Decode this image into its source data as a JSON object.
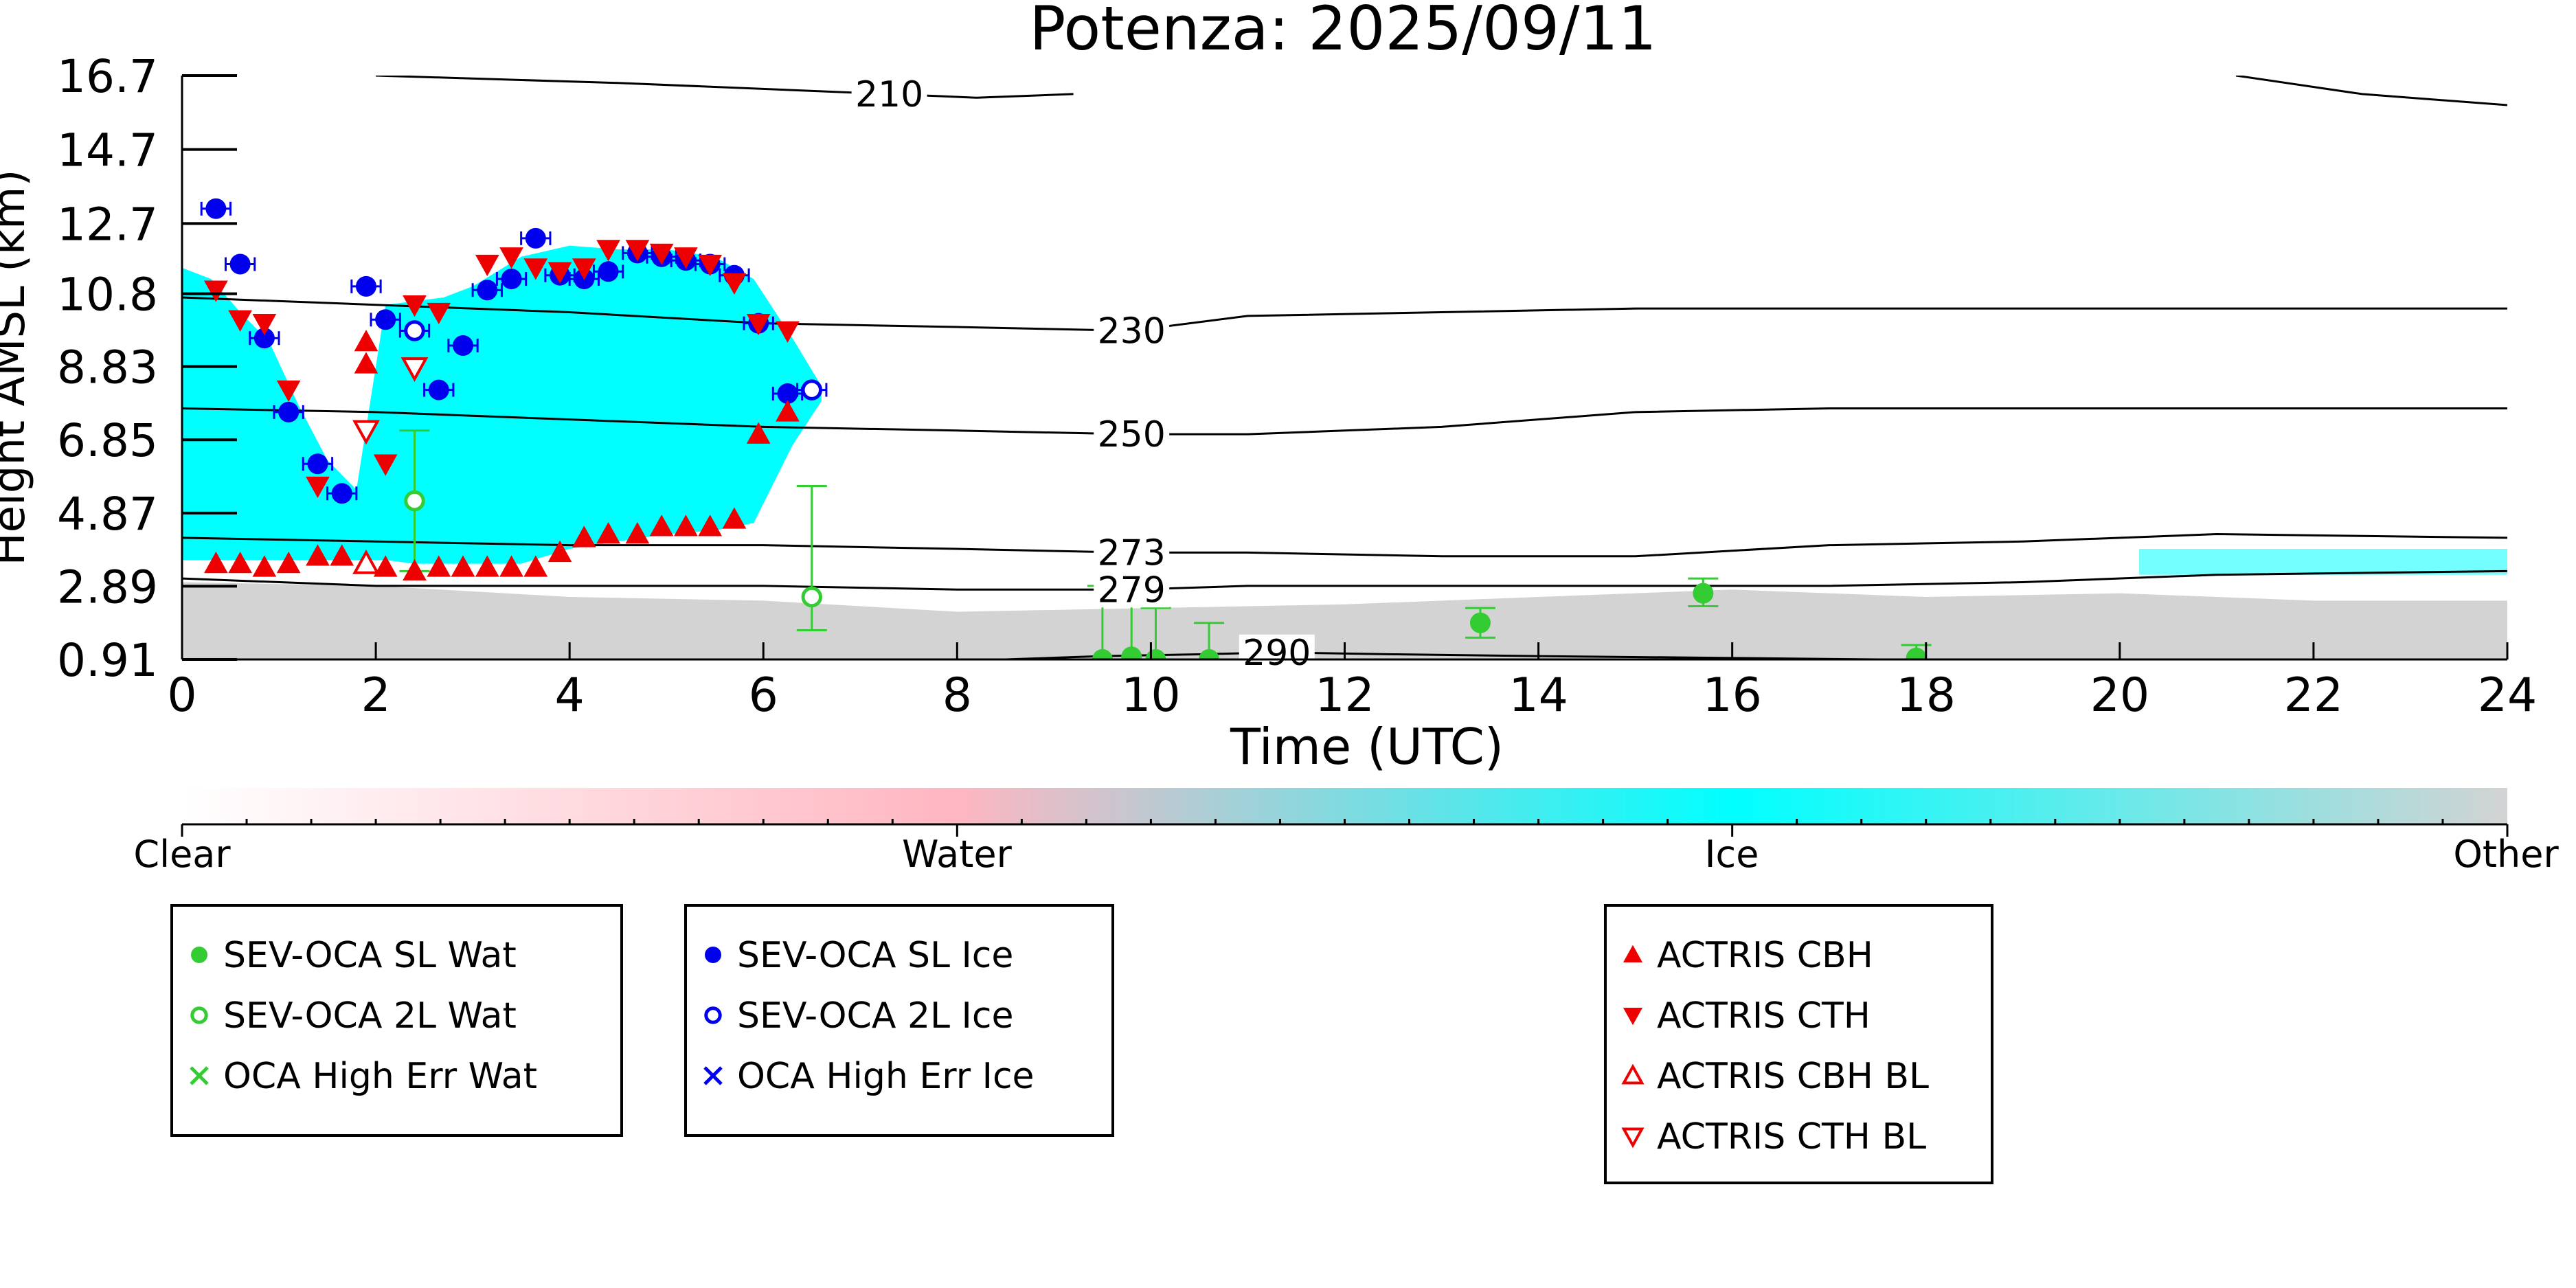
{
  "chart_data": {
    "type": "scatter",
    "title": "Potenza: 2025/09/11",
    "xlabel": "Time (UTC)",
    "ylabel": "Height AMSL (km)",
    "xlim": [
      0,
      24
    ],
    "ylim": [
      0.91,
      16.7
    ],
    "xticks": [
      "0",
      "2",
      "4",
      "6",
      "8",
      "10",
      "12",
      "14",
      "16",
      "18",
      "20",
      "22",
      "24"
    ],
    "yticks": [
      "16.7",
      "14.7",
      "12.7",
      "10.8",
      "8.83",
      "6.85",
      "4.87",
      "2.89",
      "0.91"
    ],
    "grid": false,
    "colorbar": {
      "labels": [
        "Clear",
        "Water",
        "Ice",
        "Other"
      ],
      "colors": [
        "#ffffff",
        "#ffb6c1",
        "#00ffff",
        "#d3d3d3"
      ]
    },
    "background_classes": {
      "ice_color": "#00ffff",
      "other_color": "#d3d3d3",
      "water_color": "#ffb6c1",
      "ice_cloud": {
        "x": [
          0.0,
          0.3,
          0.6,
          0.9,
          1.2,
          1.5,
          1.8,
          2.1,
          2.4,
          2.7,
          3.0,
          3.5,
          4.0,
          4.5,
          5.0,
          5.5,
          5.9,
          6.3,
          6.6
        ],
        "top": [
          11.5,
          11.2,
          10.3,
          9.5,
          7.8,
          6.3,
          5.5,
          10.5,
          10.6,
          10.7,
          11.0,
          11.8,
          12.1,
          12.0,
          12.0,
          11.8,
          11.2,
          9.6,
          8.3
        ],
        "base": [
          3.6,
          3.6,
          3.6,
          3.6,
          3.6,
          3.6,
          3.6,
          3.6,
          3.5,
          3.5,
          3.5,
          3.5,
          3.9,
          4.1,
          4.3,
          4.4,
          4.6,
          6.7,
          7.9
        ]
      },
      "ice_thin_layer": {
        "x": [
          20.2,
          24.0
        ],
        "top": [
          3.9,
          3.9
        ],
        "base": [
          3.2,
          3.2
        ]
      },
      "other_layer": {
        "x": [
          0,
          2,
          4,
          6,
          8,
          10,
          12,
          14,
          16,
          18,
          20,
          22,
          24
        ],
        "top": [
          3.0,
          2.9,
          2.6,
          2.5,
          2.2,
          2.3,
          2.4,
          2.6,
          2.8,
          2.6,
          2.7,
          2.5,
          2.5
        ]
      }
    },
    "contours": [
      {
        "label": "210",
        "label_x": 7.3,
        "x": [
          2.0,
          4.5,
          7.3,
          8.2,
          9.2
        ],
        "y": [
          16.7,
          16.5,
          16.2,
          16.1,
          16.2
        ]
      },
      {
        "label": "",
        "label_x": null,
        "x": [
          21.2,
          22.5,
          24.0
        ],
        "y": [
          16.7,
          16.2,
          15.9
        ]
      },
      {
        "label": "230",
        "label_x": 9.8,
        "x": [
          0,
          2,
          4,
          6,
          8,
          9.8,
          11,
          13,
          15,
          17,
          19,
          21,
          24
        ],
        "y": [
          10.7,
          10.5,
          10.3,
          10.0,
          9.9,
          9.8,
          10.2,
          10.3,
          10.4,
          10.4,
          10.4,
          10.4,
          10.4
        ]
      },
      {
        "label": "250",
        "label_x": 9.8,
        "x": [
          0,
          2,
          4,
          6,
          8,
          9.8,
          11,
          13,
          15,
          17,
          19,
          21,
          24
        ],
        "y": [
          7.7,
          7.6,
          7.4,
          7.2,
          7.1,
          7.0,
          7.0,
          7.2,
          7.6,
          7.7,
          7.7,
          7.7,
          7.7
        ]
      },
      {
        "label": "273",
        "label_x": 9.8,
        "x": [
          0,
          2,
          4,
          6,
          8,
          9.8,
          11,
          13,
          15,
          17,
          19,
          21,
          24
        ],
        "y": [
          4.2,
          4.1,
          4.0,
          4.0,
          3.9,
          3.8,
          3.8,
          3.7,
          3.7,
          4.0,
          4.1,
          4.3,
          4.2
        ]
      },
      {
        "label": "279",
        "label_x": 9.8,
        "x": [
          0,
          2,
          4,
          6,
          8,
          9.8,
          11,
          13,
          15,
          17,
          19,
          21,
          24
        ],
        "y": [
          3.1,
          2.9,
          2.9,
          2.9,
          2.8,
          2.8,
          2.9,
          2.9,
          2.9,
          2.9,
          3.0,
          3.2,
          3.3
        ]
      },
      {
        "label": "290",
        "label_x": 11.3,
        "x": [
          8.5,
          9.5,
          10.5,
          11.3,
          12.5,
          14,
          16,
          17.5
        ],
        "y": [
          0.91,
          1.0,
          1.05,
          1.1,
          1.05,
          1.0,
          0.95,
          0.91
        ]
      }
    ],
    "series": [
      {
        "name": "SEV-OCA SL Wat",
        "marker": "filled-circle",
        "color": "#33cc33",
        "points": [
          {
            "x": 9.5,
            "y": 0.91,
            "err": [
              0.91,
              2.9
            ]
          },
          {
            "x": 9.8,
            "y": 0.98,
            "err": [
              0.91,
              2.9
            ]
          },
          {
            "x": 10.05,
            "y": 0.91,
            "err": [
              0.91,
              2.3
            ]
          },
          {
            "x": 10.6,
            "y": 0.91,
            "err": [
              0.91,
              1.9
            ]
          },
          {
            "x": 13.4,
            "y": 1.9,
            "err": [
              1.5,
              2.3
            ]
          },
          {
            "x": 15.7,
            "y": 2.7,
            "err": [
              2.35,
              3.1
            ]
          },
          {
            "x": 17.9,
            "y": 0.95,
            "err": [
              0.91,
              1.3
            ]
          }
        ]
      },
      {
        "name": "SEV-OCA 2L Wat",
        "marker": "open-circle",
        "color": "#33cc33",
        "points": [
          {
            "x": 2.4,
            "y": 5.2,
            "err": [
              3.3,
              7.1
            ]
          },
          {
            "x": 6.5,
            "y": 2.6,
            "err": [
              1.7,
              5.6
            ]
          }
        ]
      },
      {
        "name": "OCA High Err Wat",
        "marker": "x",
        "color": "#33cc33",
        "points": []
      },
      {
        "name": "SEV-OCA SL Ice",
        "marker": "filled-circle",
        "color": "#0000ee",
        "points": [
          {
            "x": 0.35,
            "y": 13.1,
            "xerr": 0.15
          },
          {
            "x": 0.6,
            "y": 11.6,
            "xerr": 0.15
          },
          {
            "x": 0.85,
            "y": 9.6,
            "xerr": 0.15
          },
          {
            "x": 1.1,
            "y": 7.6,
            "xerr": 0.15
          },
          {
            "x": 1.4,
            "y": 6.2,
            "xerr": 0.15
          },
          {
            "x": 1.65,
            "y": 5.4,
            "xerr": 0.15
          },
          {
            "x": 1.9,
            "y": 11.0,
            "xerr": 0.15
          },
          {
            "x": 2.1,
            "y": 10.1,
            "xerr": 0.15
          },
          {
            "x": 2.65,
            "y": 8.2,
            "xerr": 0.15
          },
          {
            "x": 2.9,
            "y": 9.4,
            "xerr": 0.15
          },
          {
            "x": 3.15,
            "y": 10.9,
            "xerr": 0.15
          },
          {
            "x": 3.4,
            "y": 11.2,
            "xerr": 0.15
          },
          {
            "x": 3.65,
            "y": 12.3,
            "xerr": 0.15
          },
          {
            "x": 3.9,
            "y": 11.3,
            "xerr": 0.15
          },
          {
            "x": 4.15,
            "y": 11.2,
            "xerr": 0.15
          },
          {
            "x": 4.4,
            "y": 11.4,
            "xerr": 0.15
          },
          {
            "x": 4.7,
            "y": 11.9,
            "xerr": 0.15
          },
          {
            "x": 4.95,
            "y": 11.8,
            "xerr": 0.15
          },
          {
            "x": 5.2,
            "y": 11.7,
            "xerr": 0.15
          },
          {
            "x": 5.45,
            "y": 11.6,
            "xerr": 0.15
          },
          {
            "x": 5.7,
            "y": 11.3,
            "xerr": 0.15
          },
          {
            "x": 5.95,
            "y": 10.0,
            "xerr": 0.15
          },
          {
            "x": 6.25,
            "y": 8.1,
            "xerr": 0.15
          }
        ]
      },
      {
        "name": "SEV-OCA 2L Ice",
        "marker": "open-circle",
        "color": "#0000ee",
        "points": [
          {
            "x": 2.4,
            "y": 9.8,
            "xerr": 0.15
          },
          {
            "x": 6.5,
            "y": 8.2,
            "xerr": 0.15
          }
        ]
      },
      {
        "name": "OCA High Err Ice",
        "marker": "x",
        "color": "#0000ee",
        "points": []
      },
      {
        "name": "ACTRIS CBH",
        "marker": "filled-triangle-up",
        "color": "#ee0000",
        "points": [
          {
            "x": 0.35,
            "y": 3.5
          },
          {
            "x": 0.6,
            "y": 3.5
          },
          {
            "x": 0.85,
            "y": 3.4
          },
          {
            "x": 1.1,
            "y": 3.5
          },
          {
            "x": 1.4,
            "y": 3.7
          },
          {
            "x": 1.65,
            "y": 3.7
          },
          {
            "x": 2.1,
            "y": 3.4
          },
          {
            "x": 2.65,
            "y": 3.4
          },
          {
            "x": 2.9,
            "y": 3.4
          },
          {
            "x": 3.15,
            "y": 3.4
          },
          {
            "x": 3.4,
            "y": 3.4
          },
          {
            "x": 3.65,
            "y": 3.4
          },
          {
            "x": 3.9,
            "y": 3.8
          },
          {
            "x": 4.15,
            "y": 4.2
          },
          {
            "x": 4.4,
            "y": 4.3
          },
          {
            "x": 4.7,
            "y": 4.3
          },
          {
            "x": 4.95,
            "y": 4.5
          },
          {
            "x": 5.2,
            "y": 4.5
          },
          {
            "x": 5.45,
            "y": 4.5
          },
          {
            "x": 5.7,
            "y": 4.7
          },
          {
            "x": 5.95,
            "y": 7.0
          },
          {
            "x": 6.25,
            "y": 7.6
          },
          {
            "x": 1.9,
            "y": 8.9
          },
          {
            "x": 1.9,
            "y": 9.5
          },
          {
            "x": 2.4,
            "y": 3.3
          }
        ]
      },
      {
        "name": "ACTRIS CTH",
        "marker": "filled-triangle-down",
        "color": "#ee0000",
        "points": [
          {
            "x": 0.35,
            "y": 10.9
          },
          {
            "x": 0.6,
            "y": 10.1
          },
          {
            "x": 0.85,
            "y": 10.0
          },
          {
            "x": 1.1,
            "y": 8.2
          },
          {
            "x": 1.4,
            "y": 5.6
          },
          {
            "x": 2.1,
            "y": 6.2
          },
          {
            "x": 2.4,
            "y": 10.5
          },
          {
            "x": 2.65,
            "y": 10.3
          },
          {
            "x": 3.15,
            "y": 11.6
          },
          {
            "x": 3.4,
            "y": 11.8
          },
          {
            "x": 3.65,
            "y": 11.5
          },
          {
            "x": 3.9,
            "y": 11.4
          },
          {
            "x": 4.15,
            "y": 11.5
          },
          {
            "x": 4.4,
            "y": 12.0
          },
          {
            "x": 4.7,
            "y": 12.0
          },
          {
            "x": 4.95,
            "y": 11.9
          },
          {
            "x": 5.2,
            "y": 11.8
          },
          {
            "x": 5.45,
            "y": 11.6
          },
          {
            "x": 5.7,
            "y": 11.1
          },
          {
            "x": 5.95,
            "y": 10.0
          },
          {
            "x": 6.25,
            "y": 9.8
          }
        ]
      },
      {
        "name": "ACTRIS CBH BL",
        "marker": "open-triangle-up",
        "color": "#ee0000",
        "points": [
          {
            "x": 1.9,
            "y": 3.5
          }
        ]
      },
      {
        "name": "ACTRIS CTH BL",
        "marker": "open-triangle-down",
        "color": "#ee0000",
        "points": [
          {
            "x": 1.9,
            "y": 7.1
          },
          {
            "x": 2.4,
            "y": 8.8
          }
        ]
      }
    ],
    "legend_boxes": [
      [
        "SEV-OCA SL Wat",
        "SEV-OCA 2L Wat",
        "OCA High Err Wat"
      ],
      [
        "SEV-OCA SL Ice",
        "SEV-OCA 2L Ice",
        "OCA High Err Ice"
      ],
      [
        "ACTRIS CBH",
        "ACTRIS CTH",
        "ACTRIS CBH BL",
        "ACTRIS CTH BL"
      ]
    ]
  }
}
